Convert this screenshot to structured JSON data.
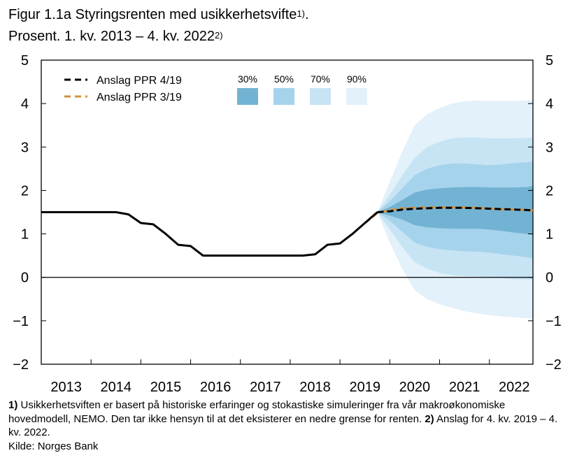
{
  "title": {
    "line1": "Figur 1.1a Styringsrenten med usikkerhetsvifte",
    "line1_ref": "1)",
    "line1_end": ".",
    "line2": "Prosent. 1. kv. 2013 – 4. kv. 2022",
    "line2_ref": "2)"
  },
  "footnotes": {
    "n1_ref": "1)",
    "n1_text": " Usikkerhetsviften er basert på historiske erfaringer og stokastiske simuleringer fra vår makroøkonomiske hovedmodell, NEMO. Den tar ikke hensyn til at det eksisterer en nedre grense for renten. ",
    "n2_ref": "2)",
    "n2_text": " Anslag for 4. kv. 2019 – 4. kv. 2022.",
    "source": "Kilde: Norges Bank"
  },
  "chart_data": {
    "type": "line",
    "x_tick_labels": [
      "2013",
      "2014",
      "2015",
      "2016",
      "2017",
      "2018",
      "2019",
      "2020",
      "2021",
      "2022"
    ],
    "y_ticks": [
      "5",
      "4",
      "3",
      "2",
      "1",
      "0",
      "-1",
      "-2"
    ],
    "ylim": [
      -2,
      5
    ],
    "xlim": [
      2013.0,
      2022.875
    ],
    "grid": false,
    "legend_placement": "top-left",
    "colors": {
      "ppr419": "#000000",
      "ppr319": "#d4913a",
      "band30": "#72b3d3",
      "band50": "#a6d3ec",
      "band70": "#c7e4f4",
      "band90": "#e2f1fa",
      "axis": "#000000"
    },
    "legend": {
      "series": [
        "Anslag PPR 4/19",
        "Anslag PPR 3/19"
      ],
      "bands": [
        "30%",
        "50%",
        "70%",
        "90%"
      ]
    },
    "series": [
      {
        "name": "Anslag PPR 4/19",
        "style": "history-solid-then-dashed",
        "history_x": [
          2013.0,
          2013.25,
          2013.5,
          2013.75,
          2014.0,
          2014.25,
          2014.5,
          2014.75,
          2015.0,
          2015.25,
          2015.5,
          2015.75,
          2016.0,
          2016.25,
          2016.5,
          2016.75,
          2017.0,
          2017.25,
          2017.5,
          2017.75,
          2018.0,
          2018.25,
          2018.5,
          2018.75,
          2019.0,
          2019.25,
          2019.5,
          2019.75
        ],
        "history_y": [
          1.5,
          1.5,
          1.5,
          1.5,
          1.5,
          1.5,
          1.5,
          1.45,
          1.25,
          1.22,
          1.0,
          0.75,
          0.72,
          0.5,
          0.5,
          0.5,
          0.5,
          0.5,
          0.5,
          0.5,
          0.5,
          0.5,
          0.53,
          0.75,
          0.78,
          1.0,
          1.25,
          1.5
        ],
        "forecast_x": [
          2019.75,
          2020.0,
          2020.25,
          2020.5,
          2020.75,
          2021.0,
          2021.25,
          2021.5,
          2021.75,
          2022.0,
          2022.25,
          2022.5,
          2022.75,
          2022.875
        ],
        "forecast_y": [
          1.5,
          1.52,
          1.56,
          1.58,
          1.59,
          1.6,
          1.6,
          1.6,
          1.59,
          1.58,
          1.57,
          1.56,
          1.55,
          1.54
        ]
      },
      {
        "name": "Anslag PPR 3/19",
        "style": "dashed",
        "x": [
          2019.5,
          2019.75,
          2020.0,
          2020.25,
          2020.5,
          2020.75,
          2021.0,
          2021.25,
          2021.5,
          2021.75,
          2022.0,
          2022.25,
          2022.5,
          2022.75,
          2022.875
        ],
        "y": [
          1.25,
          1.48,
          1.55,
          1.59,
          1.6,
          1.61,
          1.61,
          1.61,
          1.61,
          1.6,
          1.58,
          1.57,
          1.56,
          1.55,
          1.54
        ]
      }
    ],
    "fan": {
      "x": [
        2019.75,
        2020.0,
        2020.25,
        2020.5,
        2020.75,
        2021.0,
        2021.25,
        2021.5,
        2021.75,
        2022.0,
        2022.25,
        2022.5,
        2022.75,
        2022.875
      ],
      "bands": [
        {
          "name": "90%",
          "upper": [
            1.5,
            2.2,
            2.9,
            3.5,
            3.75,
            3.9,
            4.0,
            4.05,
            4.07,
            4.06,
            4.06,
            4.06,
            4.07,
            4.08
          ],
          "lower": [
            1.5,
            0.8,
            0.2,
            -0.3,
            -0.5,
            -0.62,
            -0.7,
            -0.78,
            -0.83,
            -0.87,
            -0.9,
            -0.92,
            -0.94,
            -0.95
          ]
        },
        {
          "name": "70%",
          "upper": [
            1.5,
            1.9,
            2.35,
            2.75,
            3.0,
            3.12,
            3.2,
            3.22,
            3.22,
            3.2,
            3.2,
            3.2,
            3.21,
            3.22
          ],
          "lower": [
            1.5,
            1.1,
            0.7,
            0.35,
            0.2,
            0.1,
            0.05,
            0.03,
            0.02,
            0.0,
            -0.02,
            -0.04,
            -0.05,
            -0.06
          ]
        },
        {
          "name": "50%",
          "upper": [
            1.5,
            1.75,
            2.05,
            2.35,
            2.5,
            2.58,
            2.62,
            2.62,
            2.6,
            2.58,
            2.6,
            2.63,
            2.65,
            2.67
          ],
          "lower": [
            1.5,
            1.3,
            1.05,
            0.8,
            0.7,
            0.65,
            0.62,
            0.6,
            0.59,
            0.57,
            0.53,
            0.5,
            0.46,
            0.44
          ]
        },
        {
          "name": "30%",
          "upper": [
            1.5,
            1.62,
            1.78,
            1.95,
            2.02,
            2.05,
            2.07,
            2.08,
            2.08,
            2.07,
            2.07,
            2.07,
            2.08,
            2.1
          ],
          "lower": [
            1.5,
            1.42,
            1.33,
            1.2,
            1.15,
            1.13,
            1.12,
            1.12,
            1.12,
            1.1,
            1.07,
            1.03,
            1.0,
            0.98
          ]
        }
      ]
    }
  }
}
